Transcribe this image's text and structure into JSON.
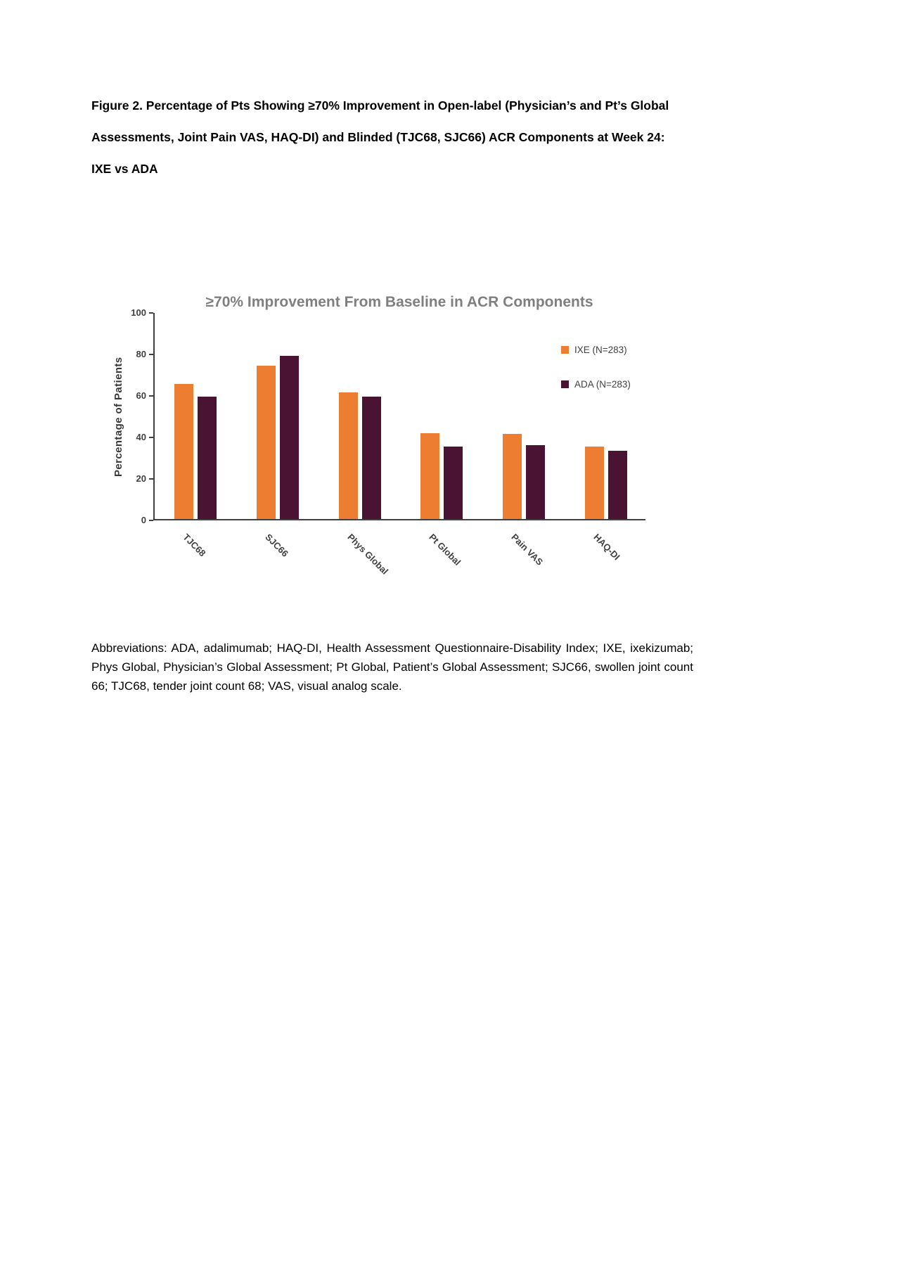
{
  "page": {
    "figure_caption_lines": [
      "Figure 2. Percentage of Pts Showing ≥70% Improvement in Open-label (Physician’s and Pt’s Global",
      "Assessments, Joint Pain VAS, HAQ-DI) and Blinded (TJC68, SJC66) ACR Components at Week 24:",
      "IXE vs ADA"
    ],
    "abbreviations": "Abbreviations: ADA, adalimumab; HAQ-DI, Health Assessment Questionnaire-Disability Index; IXE, ixekizumab; Phys Global, Physician’s Global Assessment; Pt Global, Patient’s Global Assessment; SJC66, swollen joint count 66; TJC68, tender joint count 68; VAS, visual analog scale."
  },
  "chart_data": {
    "type": "bar",
    "title": "≥70% Improvement From Baseline in ACR Components",
    "xlabel": "",
    "ylabel": "Percentage of Patients",
    "ylim": [
      0,
      100
    ],
    "yticks": [
      0,
      20,
      40,
      60,
      80,
      100
    ],
    "grid": false,
    "legend_position": "top-right",
    "categories": [
      "TJC68",
      "SJC66",
      "Phys Global",
      "Pt Global",
      "Pain VAS",
      "HAQ-DI"
    ],
    "series": [
      {
        "name": "IXE (N=283)",
        "color": "#ED7D31",
        "values": [
          65,
          74,
          61,
          41.5,
          41,
          35
        ]
      },
      {
        "name": "ADA (N=283)",
        "color": "#4A1334",
        "values": [
          59,
          78.5,
          59,
          35,
          35.5,
          33
        ]
      }
    ]
  }
}
